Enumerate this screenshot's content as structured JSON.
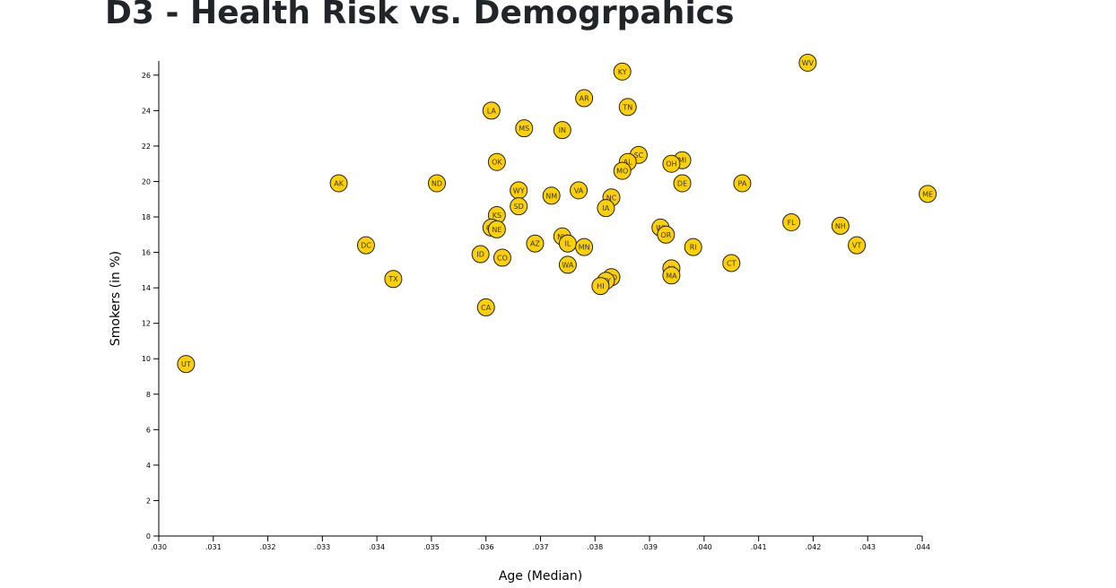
{
  "page": {
    "title": "D3 - Health Risk vs. Demogrpahics"
  },
  "chart_data": {
    "type": "scatter",
    "title": "",
    "xlabel": "Age (Median)",
    "ylabel": "Smokers (in %)",
    "xlim": [
      0.03,
      0.044
    ],
    "ylim": [
      0,
      26.8
    ],
    "xticks": [
      ".030",
      ".031",
      ".032",
      ".033",
      ".034",
      ".035",
      ".036",
      ".037",
      ".038",
      ".039",
      ".040",
      ".041",
      ".042",
      ".043",
      ".044"
    ],
    "yticks": [
      "0",
      "2",
      "4",
      "6",
      "8",
      "10",
      "12",
      "14",
      "16",
      "18",
      "20",
      "22",
      "24",
      "26"
    ],
    "grid": false,
    "marker_color": "#ffd000",
    "points": [
      {
        "label": "WV",
        "x": 0.0419,
        "y": 26.7
      },
      {
        "label": "KY",
        "x": 0.0385,
        "y": 26.2
      },
      {
        "label": "AR",
        "x": 0.0378,
        "y": 24.7
      },
      {
        "label": "TN",
        "x": 0.0386,
        "y": 24.2
      },
      {
        "label": "LA",
        "x": 0.0361,
        "y": 24.0
      },
      {
        "label": "MS",
        "x": 0.0367,
        "y": 23.0
      },
      {
        "label": "IN",
        "x": 0.0374,
        "y": 22.9
      },
      {
        "label": "SC",
        "x": 0.0388,
        "y": 21.5
      },
      {
        "label": "MI",
        "x": 0.0396,
        "y": 21.2
      },
      {
        "label": "OK",
        "x": 0.0362,
        "y": 21.1
      },
      {
        "label": "AL",
        "x": 0.0386,
        "y": 21.1
      },
      {
        "label": "OH",
        "x": 0.0394,
        "y": 21.0
      },
      {
        "label": "MO",
        "x": 0.0385,
        "y": 20.6
      },
      {
        "label": "AK",
        "x": 0.0333,
        "y": 19.9
      },
      {
        "label": "ND",
        "x": 0.0351,
        "y": 19.9
      },
      {
        "label": "DE",
        "x": 0.0396,
        "y": 19.9
      },
      {
        "label": "PA",
        "x": 0.0407,
        "y": 19.9
      },
      {
        "label": "WY",
        "x": 0.0366,
        "y": 19.5
      },
      {
        "label": "VA",
        "x": 0.0377,
        "y": 19.5
      },
      {
        "label": "ME",
        "x": 0.0441,
        "y": 19.3
      },
      {
        "label": "NM",
        "x": 0.0372,
        "y": 19.2
      },
      {
        "label": "NC",
        "x": 0.0383,
        "y": 19.1
      },
      {
        "label": "SD",
        "x": 0.0366,
        "y": 18.6
      },
      {
        "label": "IA",
        "x": 0.0382,
        "y": 18.5
      },
      {
        "label": "KS",
        "x": 0.0362,
        "y": 18.1
      },
      {
        "label": "FL",
        "x": 0.0416,
        "y": 17.7
      },
      {
        "label": "NH",
        "x": 0.0425,
        "y": 17.5
      },
      {
        "label": "WI",
        "x": 0.0392,
        "y": 17.4
      },
      {
        "label": "GA",
        "x": 0.0361,
        "y": 17.4
      },
      {
        "label": "NE",
        "x": 0.0362,
        "y": 17.3
      },
      {
        "label": "OR",
        "x": 0.0393,
        "y": 17.0
      },
      {
        "label": "NV",
        "x": 0.0374,
        "y": 16.9
      },
      {
        "label": "IL",
        "x": 0.0375,
        "y": 16.5
      },
      {
        "label": "AZ",
        "x": 0.0369,
        "y": 16.5
      },
      {
        "label": "DC",
        "x": 0.0338,
        "y": 16.4
      },
      {
        "label": "VT",
        "x": 0.0428,
        "y": 16.4
      },
      {
        "label": "RI",
        "x": 0.0398,
        "y": 16.3
      },
      {
        "label": "MN",
        "x": 0.0378,
        "y": 16.3
      },
      {
        "label": "ID",
        "x": 0.0359,
        "y": 15.9
      },
      {
        "label": "CO",
        "x": 0.0363,
        "y": 15.7
      },
      {
        "label": "CT",
        "x": 0.0405,
        "y": 15.4
      },
      {
        "label": "WA",
        "x": 0.0375,
        "y": 15.3
      },
      {
        "label": "NJ",
        "x": 0.0394,
        "y": 15.1
      },
      {
        "label": "MA",
        "x": 0.0394,
        "y": 14.7
      },
      {
        "label": "MD",
        "x": 0.0383,
        "y": 14.6
      },
      {
        "label": "TX",
        "x": 0.0343,
        "y": 14.5
      },
      {
        "label": "NY",
        "x": 0.0382,
        "y": 14.4
      },
      {
        "label": "HI",
        "x": 0.0381,
        "y": 14.1
      },
      {
        "label": "CA",
        "x": 0.036,
        "y": 12.9
      },
      {
        "label": "UT",
        "x": 0.0305,
        "y": 9.7
      }
    ]
  }
}
